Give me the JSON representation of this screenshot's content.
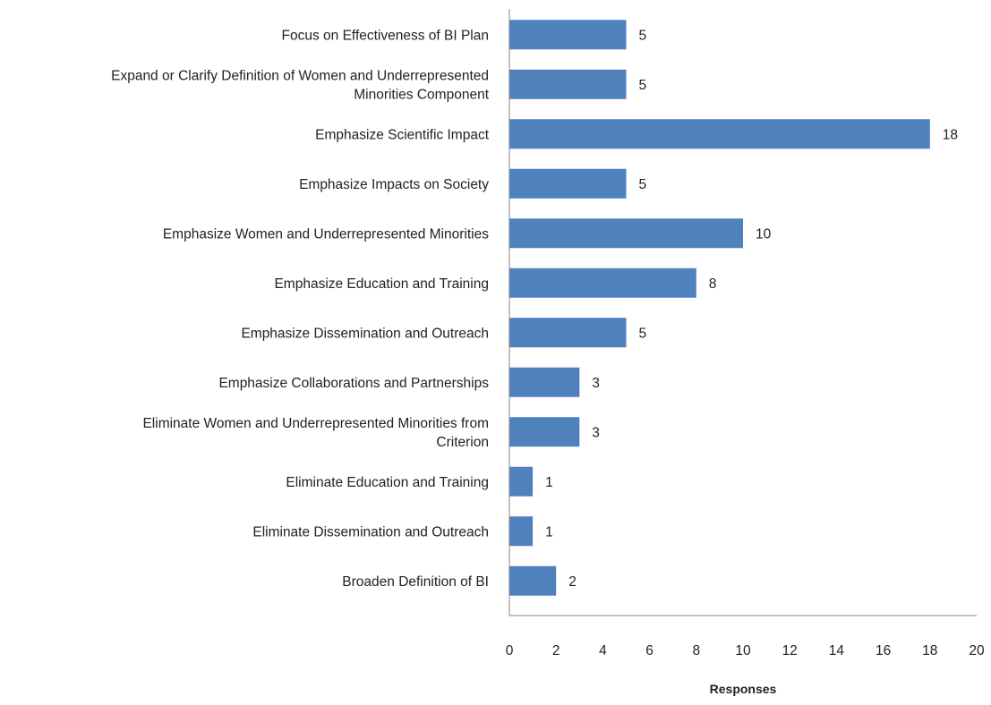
{
  "chart_data": {
    "type": "bar",
    "orientation": "horizontal",
    "categories": [
      "Focus on Effectiveness of BI Plan",
      "Expand or Clarify Definition of Women and Underrepresented Minorities Component",
      "Emphasize Scientific Impact",
      "Emphasize Impacts on Society",
      "Emphasize Women and Underrepresented Minorities",
      "Emphasize Education and Training",
      "Emphasize Dissemination and Outreach",
      "Emphasize Collaborations and Partnerships",
      "Eliminate Women and Underrepresented Minorities from Criterion",
      "Eliminate Education and Training",
      "Eliminate Dissemination and Outreach",
      "Broaden Definition of BI"
    ],
    "category_lines": [
      [
        "Focus on Effectiveness of BI Plan"
      ],
      [
        "Expand or Clarify Definition of Women and Underrepresented",
        "Minorities Component"
      ],
      [
        "Emphasize Scientific Impact"
      ],
      [
        "Emphasize Impacts on Society"
      ],
      [
        "Emphasize Women and Underrepresented Minorities"
      ],
      [
        "Emphasize Education and Training"
      ],
      [
        "Emphasize Dissemination and Outreach"
      ],
      [
        "Emphasize Collaborations and Partnerships"
      ],
      [
        "Eliminate Women and Underrepresented Minorities from",
        "Criterion"
      ],
      [
        "Eliminate Education and Training"
      ],
      [
        "Eliminate Dissemination and Outreach"
      ],
      [
        "Broaden Definition of BI"
      ]
    ],
    "values": [
      5,
      5,
      18,
      5,
      10,
      8,
      5,
      3,
      3,
      1,
      1,
      2
    ],
    "value_labels": [
      "5",
      "5",
      "18",
      "5",
      "10",
      "8",
      "5",
      "3",
      "3",
      "1",
      "1",
      "2"
    ],
    "title": "",
    "xlabel": "Responses",
    "ylabel": "",
    "xlim": [
      0,
      20
    ],
    "x_ticks": [
      0,
      2,
      4,
      6,
      8,
      10,
      12,
      14,
      16,
      18,
      20
    ],
    "x_tick_labels": [
      "0",
      "2",
      "4",
      "6",
      "8",
      "10",
      "12",
      "14",
      "16",
      "18",
      "20"
    ],
    "grid": false,
    "legend": "none",
    "bar_color": "#4f81bd"
  }
}
